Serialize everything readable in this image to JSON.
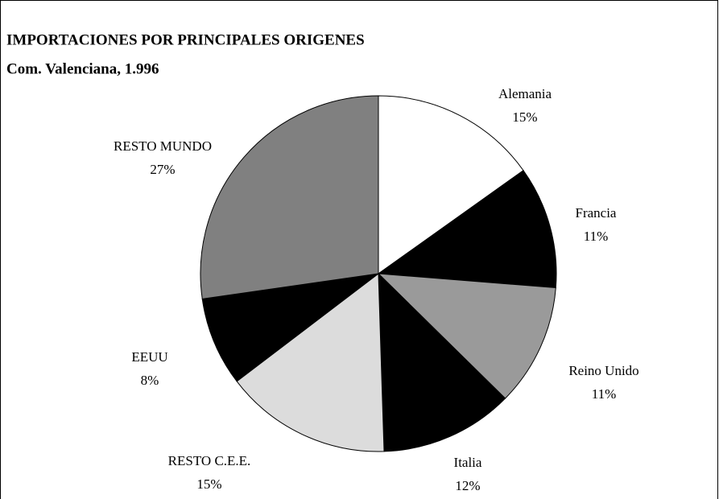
{
  "chart_data": {
    "type": "pie",
    "title": "IMPORTACIONES POR PRINCIPALES ORIGENES",
    "subtitle": "Com. Valenciana, 1.996",
    "categories": [
      "Alemania",
      "Francia",
      "Reino Unido",
      "Italia",
      "RESTO C.E.E.",
      "EEUU",
      "RESTO MUNDO"
    ],
    "values": [
      15,
      11,
      11,
      12,
      15,
      8,
      27
    ],
    "value_labels": [
      "15%",
      "11%",
      "11%",
      "12%",
      "15%",
      "8%",
      "27%"
    ],
    "colors": [
      "#ffffff",
      "#000000",
      "#9a9a9a",
      "#000000",
      "#dcdcdc",
      "#000000",
      "#808080"
    ]
  }
}
